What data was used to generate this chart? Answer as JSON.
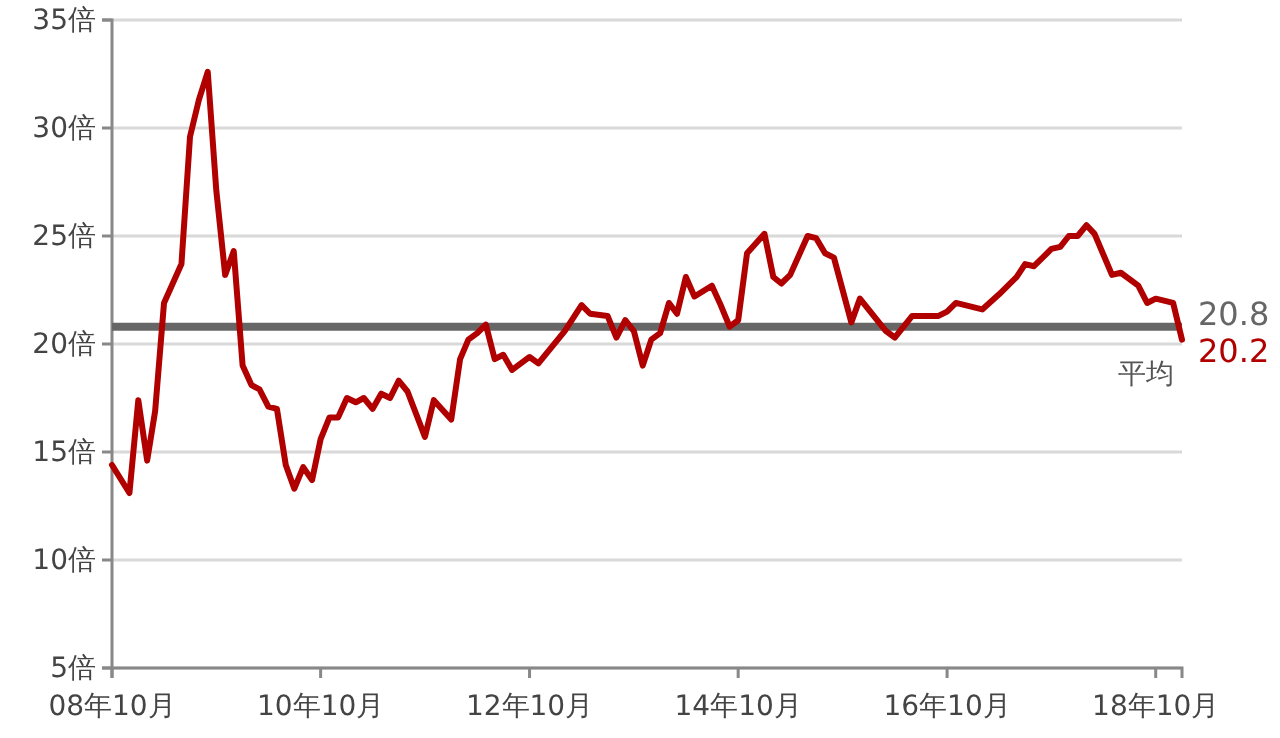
{
  "chart_data": {
    "type": "line",
    "grid": "y",
    "marker": "none",
    "line_style": "solid",
    "xlim": [
      "2008-10",
      "2019-01"
    ],
    "xticks": [
      {
        "value": "2008-10",
        "label": "08年10月"
      },
      {
        "value": "2010-10",
        "label": "10年10月"
      },
      {
        "value": "2012-10",
        "label": "12年10月"
      },
      {
        "value": "2014-10",
        "label": "14年10月"
      },
      {
        "value": "2016-10",
        "label": "16年10月"
      },
      {
        "value": "2018-10",
        "label": "18年10月"
      }
    ],
    "ylim": [
      5,
      35
    ],
    "yticks": [
      {
        "value": 5,
        "label": "5倍"
      },
      {
        "value": 10,
        "label": "10倍"
      },
      {
        "value": 15,
        "label": "15倍"
      },
      {
        "value": 20,
        "label": "20倍"
      },
      {
        "value": 25,
        "label": "25倍"
      },
      {
        "value": 30,
        "label": "30倍"
      },
      {
        "value": 35,
        "label": "35倍"
      }
    ],
    "x": [
      "2008-10",
      "2008-12",
      "2009-01",
      "2009-02",
      "2009-03",
      "2009-04",
      "2009-06",
      "2009-07",
      "2009-08",
      "2009-09",
      "2009-10",
      "2009-11",
      "2009-12",
      "2010-01",
      "2010-02",
      "2010-03",
      "2010-04",
      "2010-05",
      "2010-06",
      "2010-07",
      "2010-08",
      "2010-09",
      "2010-10",
      "2010-11",
      "2010-12",
      "2011-01",
      "2011-02",
      "2011-03",
      "2011-04",
      "2011-05",
      "2011-06",
      "2011-07",
      "2011-08",
      "2011-10",
      "2011-11",
      "2012-01",
      "2012-02",
      "2012-03",
      "2012-04",
      "2012-05",
      "2012-06",
      "2012-07",
      "2012-08",
      "2012-10",
      "2012-11",
      "2013-02",
      "2013-04",
      "2013-05",
      "2013-07",
      "2013-08",
      "2013-09",
      "2013-10",
      "2013-11",
      "2013-12",
      "2014-01",
      "2014-02",
      "2014-03",
      "2014-04",
      "2014-05",
      "2014-07",
      "2014-08",
      "2014-09",
      "2014-10",
      "2014-11",
      "2015-01",
      "2015-02",
      "2015-03",
      "2015-04",
      "2015-06",
      "2015-07",
      "2015-08",
      "2015-09",
      "2015-11",
      "2015-12",
      "2016-03",
      "2016-04",
      "2016-06",
      "2016-09",
      "2016-10",
      "2016-11",
      "2017-02",
      "2017-04",
      "2017-06",
      "2017-07",
      "2017-08",
      "2017-10",
      "2017-11",
      "2017-12",
      "2018-01",
      "2018-02",
      "2018-03",
      "2018-05",
      "2018-06",
      "2018-08",
      "2018-09",
      "2018-10",
      "2018-12",
      "2019-01"
    ],
    "series": [
      {
        "color": "#b00000",
        "values": [
          14.4,
          13.1,
          17.4,
          14.6,
          16.9,
          21.9,
          23.7,
          29.6,
          31.3,
          32.6,
          27.1,
          23.2,
          24.3,
          19.0,
          18.1,
          17.9,
          17.1,
          17.0,
          14.4,
          13.3,
          14.3,
          13.7,
          15.6,
          16.6,
          16.6,
          17.5,
          17.3,
          17.5,
          17.0,
          17.7,
          17.5,
          18.3,
          17.8,
          15.7,
          17.4,
          16.5,
          19.3,
          20.2,
          20.5,
          20.9,
          19.3,
          19.5,
          18.8,
          19.4,
          19.1,
          20.6,
          21.8,
          21.4,
          21.3,
          20.3,
          21.1,
          20.6,
          19.0,
          20.2,
          20.5,
          21.9,
          21.4,
          23.1,
          22.2,
          22.7,
          21.8,
          20.8,
          21.1,
          24.2,
          25.1,
          23.1,
          22.8,
          23.2,
          25.0,
          24.9,
          24.2,
          24.0,
          21.0,
          22.1,
          20.6,
          20.3,
          21.3,
          21.3,
          21.5,
          21.9,
          21.6,
          22.3,
          23.1,
          23.7,
          23.6,
          24.4,
          24.5,
          25.0,
          25.0,
          25.5,
          25.1,
          23.2,
          23.3,
          22.7,
          21.9,
          22.1,
          21.9,
          20.2
        ]
      }
    ],
    "ref_lines": [
      {
        "axis": "y",
        "value": 20.8,
        "label": "平均",
        "color": "#666666"
      }
    ],
    "annotations": [
      {
        "text": "20.8",
        "x": "2019-01",
        "y": 20.8
      },
      {
        "text": "20.2",
        "x": "2019-01",
        "y": 20.2
      }
    ]
  }
}
